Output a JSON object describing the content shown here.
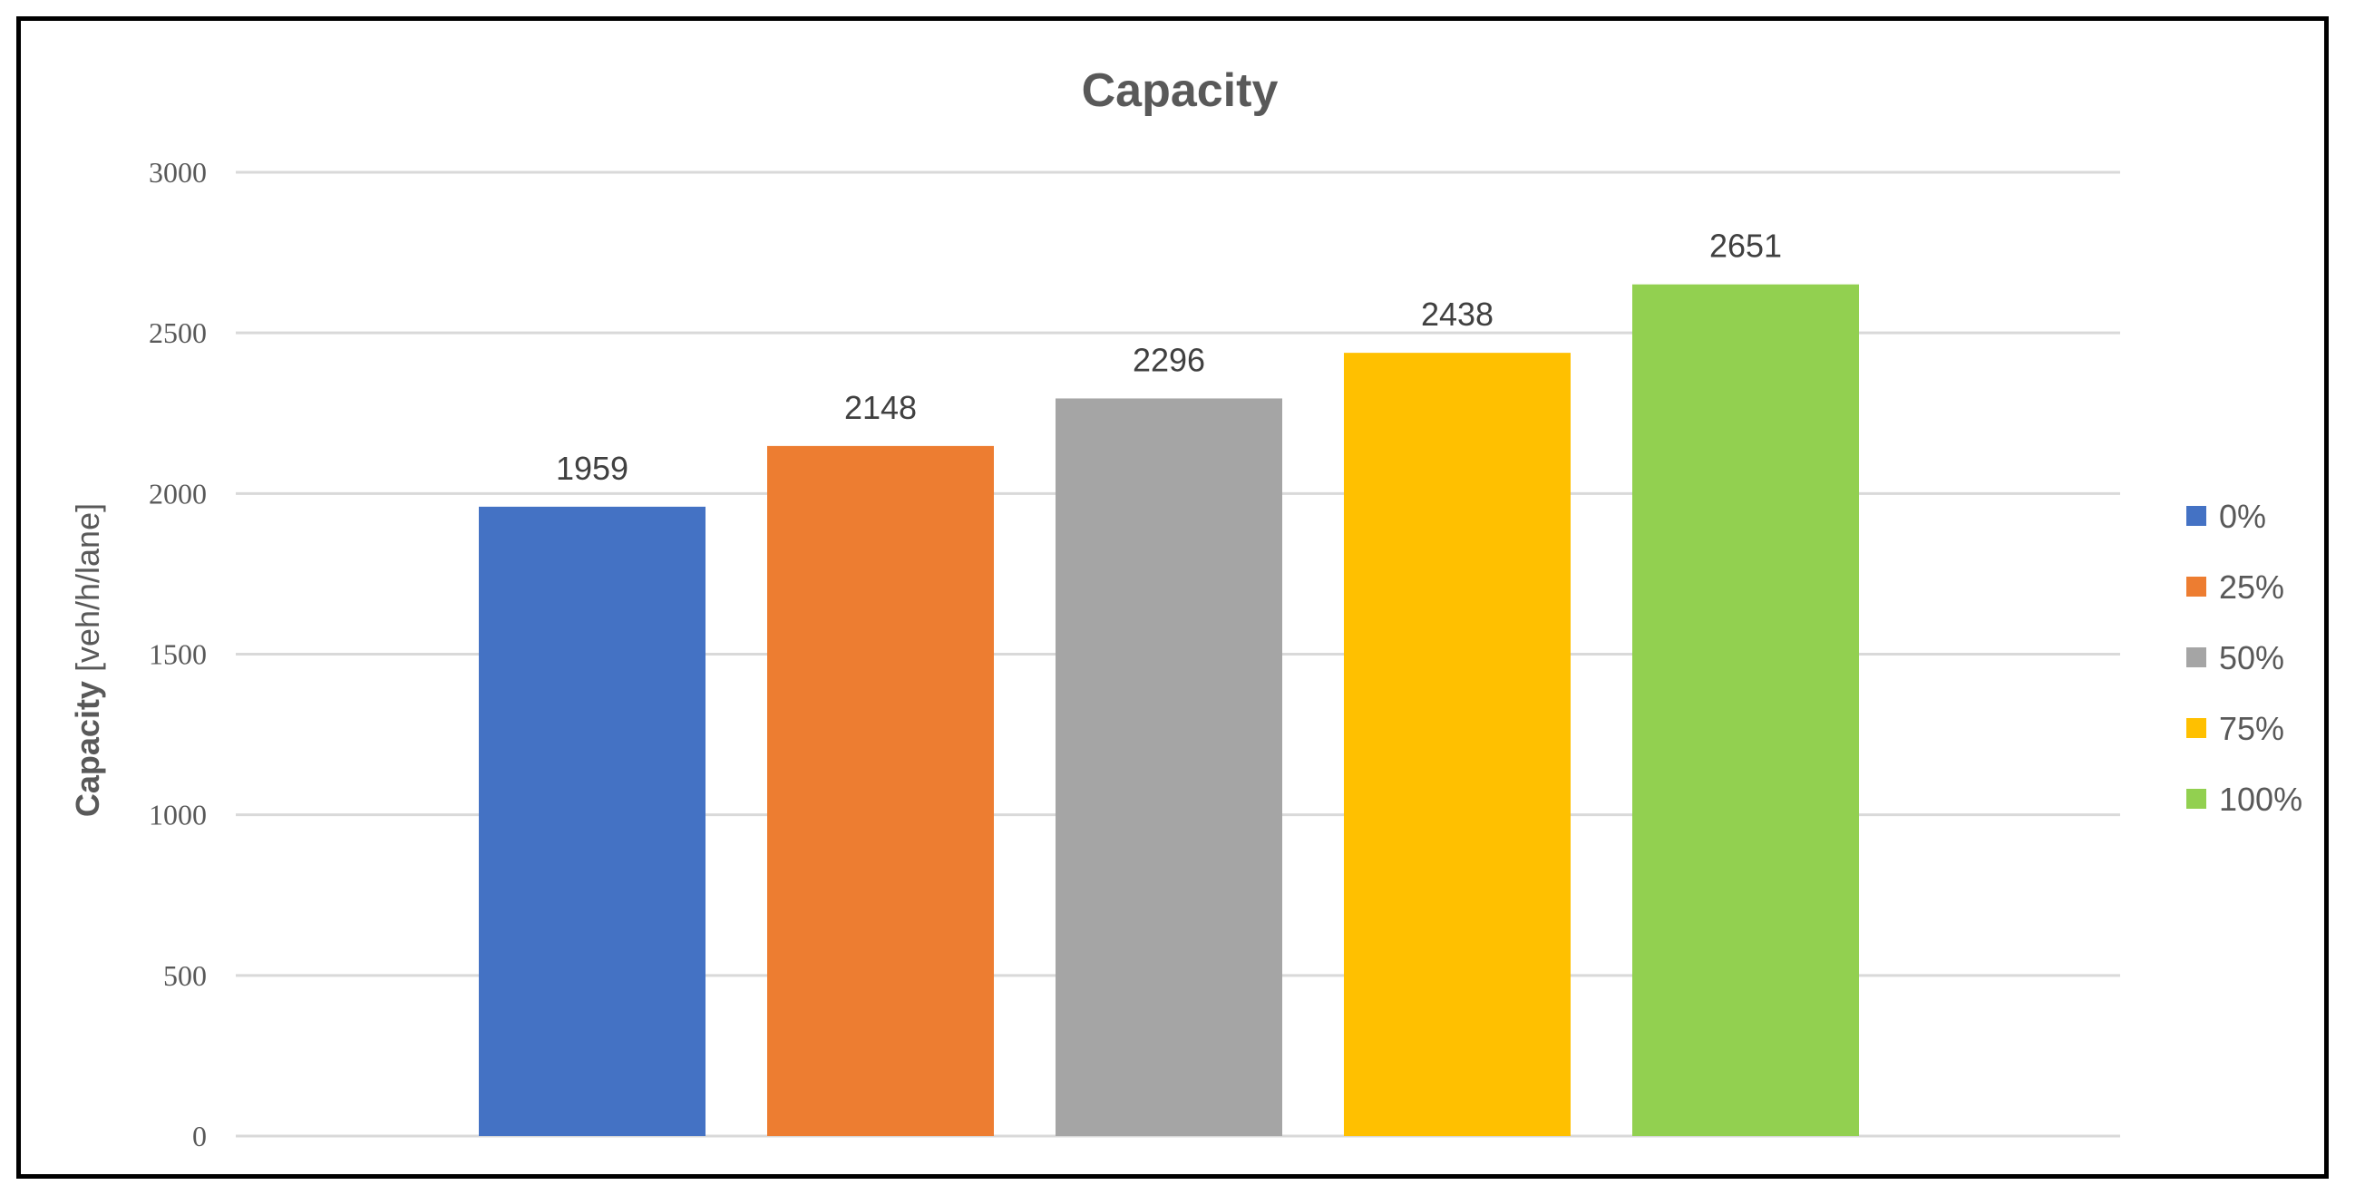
{
  "chart_data": {
    "type": "bar",
    "title": "Capacity",
    "ylabel_main": "Capacity",
    "ylabel_unit": " [veh/h/lane]",
    "xlabel": "",
    "ylim": [
      0,
      3000
    ],
    "yticks": [
      "0",
      "500",
      "1000",
      "1500",
      "2000",
      "2500",
      "3000"
    ],
    "ytick_values": [
      0,
      500,
      1000,
      1500,
      2000,
      2500,
      3000
    ],
    "categories": [
      "0%",
      "25%",
      "50%",
      "75%",
      "100%"
    ],
    "values": [
      1959,
      2148,
      2296,
      2438,
      2651
    ],
    "data_labels": [
      "1959",
      "2148",
      "2296",
      "2438",
      "2651"
    ],
    "colors": [
      "#4472c4",
      "#ed7d31",
      "#a5a5a5",
      "#ffc000",
      "#92d050"
    ],
    "grid": true,
    "legend_position": "right",
    "legend": [
      "0%",
      "25%",
      "50%",
      "75%",
      "100%"
    ]
  }
}
